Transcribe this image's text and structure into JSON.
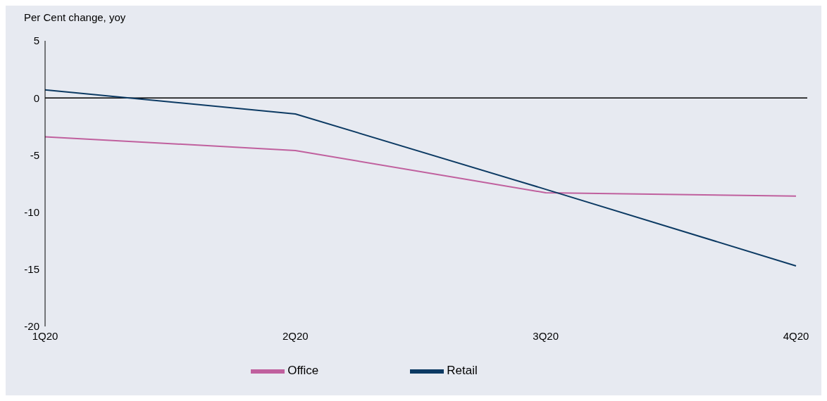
{
  "chart_data": {
    "type": "line",
    "ylabel": "Per Cent change, yoy",
    "categories": [
      "1Q20",
      "2Q20",
      "3Q20",
      "4Q20"
    ],
    "series": [
      {
        "name": "Office",
        "color": "#c0609e",
        "values": [
          -3.4,
          -4.6,
          -8.3,
          -8.6
        ]
      },
      {
        "name": "Retail",
        "color": "#0c3a63",
        "values": [
          0.7,
          -1.4,
          -8.0,
          -14.7
        ]
      }
    ],
    "ylim": [
      -20,
      5
    ],
    "yticks": [
      -20,
      -15,
      -10,
      -5,
      0,
      5
    ],
    "legend": "bottom",
    "marker": "none",
    "line_style": "solid",
    "ref_lines": [
      {
        "axis": "y",
        "value": 0,
        "color": "#000000"
      }
    ]
  }
}
